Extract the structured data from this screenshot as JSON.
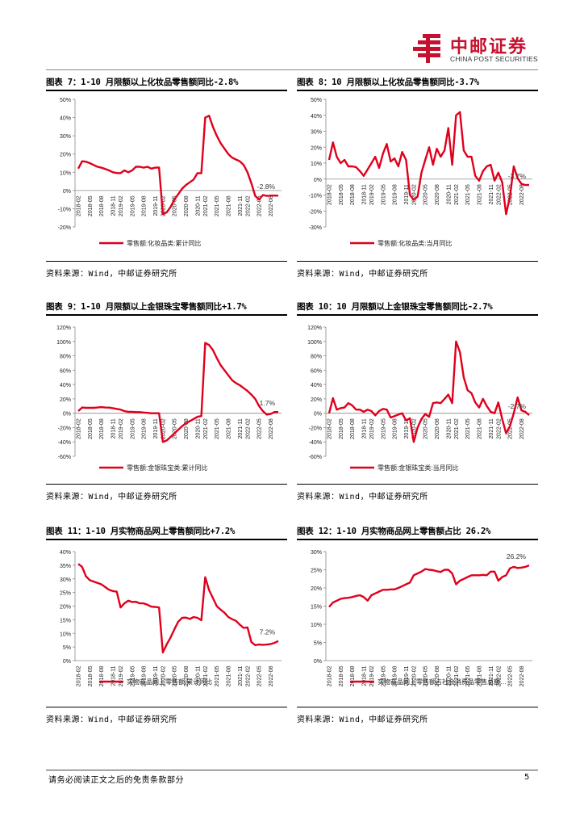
{
  "header": {
    "brand_cn": "中邮证券",
    "brand_en": "CHINA POST SECURITIES",
    "brand_color": "#c8102e"
  },
  "footer": {
    "disclaimer": "请务必阅读正文之后的免责条款部分",
    "page_number": "5"
  },
  "source_text": "资料来源：Wind，中邮证券研究所",
  "series_color": "#e0001b",
  "chart_data": [
    {
      "id": "c7",
      "type": "line",
      "title": "图表 7：1-10 月限额以上化妆品零售额同比-2.8%",
      "legend": "零售额:化妆品类:累计同比",
      "ylim": [
        -20,
        50
      ],
      "yticks": [
        50,
        40,
        30,
        20,
        10,
        0,
        -10,
        -20
      ],
      "yunit": "%",
      "xticks": [
        "2018-02",
        "2018-05",
        "2018-08",
        "2018-11",
        "2019-02",
        "2019-05",
        "2019-08",
        "2019-11",
        "2020-02",
        "2020-05",
        "2020-08",
        "2020-11",
        "2021-02",
        "2021-05",
        "2021-08",
        "2021-11",
        "2022-02",
        "2022-05",
        "2022-08"
      ],
      "x": [
        "2018-02",
        "2018-03",
        "2018-04",
        "2018-05",
        "2018-06",
        "2018-07",
        "2018-08",
        "2018-09",
        "2018-10",
        "2018-11",
        "2018-12",
        "2019-02",
        "2019-03",
        "2019-04",
        "2019-05",
        "2019-06",
        "2019-07",
        "2019-08",
        "2019-09",
        "2019-10",
        "2019-11",
        "2019-12",
        "2020-02",
        "2020-03",
        "2020-04",
        "2020-05",
        "2020-06",
        "2020-07",
        "2020-08",
        "2020-09",
        "2020-10",
        "2020-11",
        "2020-12",
        "2021-02",
        "2021-03",
        "2021-04",
        "2021-05",
        "2021-06",
        "2021-07",
        "2021-08",
        "2021-09",
        "2021-10",
        "2021-11",
        "2021-12",
        "2022-02",
        "2022-03",
        "2022-04",
        "2022-05",
        "2022-06",
        "2022-07",
        "2022-08",
        "2022-09",
        "2022-10"
      ],
      "values": [
        12,
        16,
        15.8,
        15,
        14,
        13,
        12.5,
        11.8,
        11,
        10,
        9.6,
        9.5,
        11,
        10,
        11,
        13,
        13,
        12.5,
        13,
        12,
        12.5,
        12.6,
        -13,
        -12,
        -9,
        -5,
        -2,
        1,
        3,
        4.5,
        6,
        9.5,
        9.5,
        40,
        41,
        35,
        30,
        26,
        23,
        20,
        18,
        17,
        16,
        14,
        10,
        4,
        -3,
        -5,
        -2.5,
        -3,
        -2.8,
        -2.8,
        -2.8
      ],
      "label": "-2.8%"
    },
    {
      "id": "c8",
      "type": "line",
      "title": "图表 8：10 月限额以上化妆品零售额同比-3.7%",
      "legend": "零售额:化妆品类:当月同比",
      "ylim": [
        -30,
        50
      ],
      "yticks": [
        50,
        40,
        30,
        20,
        10,
        0,
        -10,
        -20,
        -30
      ],
      "yunit": "%",
      "xticks": [
        "2018-02",
        "2018-05",
        "2018-08",
        "2018-11",
        "2019-02",
        "2019-05",
        "2019-08",
        "2019-11",
        "2020-02",
        "2020-05",
        "2020-08",
        "2020-11",
        "2021-02",
        "2021-05",
        "2021-08",
        "2021-11",
        "2022-02",
        "2022-05",
        "2022-08"
      ],
      "x": [
        "2018-02",
        "2018-03",
        "2018-04",
        "2018-05",
        "2018-06",
        "2018-07",
        "2018-08",
        "2018-09",
        "2018-10",
        "2018-11",
        "2018-12",
        "2019-02",
        "2019-03",
        "2019-04",
        "2019-05",
        "2019-06",
        "2019-07",
        "2019-08",
        "2019-09",
        "2019-10",
        "2019-11",
        "2019-12",
        "2020-02",
        "2020-03",
        "2020-04",
        "2020-05",
        "2020-06",
        "2020-07",
        "2020-08",
        "2020-09",
        "2020-10",
        "2020-11",
        "2020-12",
        "2021-02",
        "2021-03",
        "2021-04",
        "2021-05",
        "2021-06",
        "2021-07",
        "2021-08",
        "2021-09",
        "2021-10",
        "2021-11",
        "2021-12",
        "2022-02",
        "2022-03",
        "2022-04",
        "2022-05",
        "2022-06",
        "2022-07",
        "2022-08",
        "2022-09",
        "2022-10"
      ],
      "values": [
        12,
        23,
        14,
        10,
        12,
        8,
        8,
        7.5,
        5,
        2,
        6,
        10,
        14,
        7,
        16,
        22,
        11,
        13,
        8,
        17,
        12,
        -10,
        -13,
        -11,
        4,
        12,
        20,
        9,
        19,
        14,
        18,
        32,
        9,
        40,
        42,
        18,
        14,
        14,
        2,
        -1,
        5,
        8,
        9,
        -1,
        4,
        -2,
        -22,
        -11,
        8,
        0.5,
        -3,
        -3.7,
        -3.7
      ],
      "label": "-3.7%"
    },
    {
      "id": "c9",
      "type": "line",
      "title": "图表 9：1-10 月限额以上金银珠宝零售额同比+1.7%",
      "legend": "零售额:金银珠宝类:累计同比",
      "ylim": [
        -60,
        120
      ],
      "yticks": [
        120,
        100,
        80,
        60,
        40,
        20,
        0,
        -20,
        -40,
        -60
      ],
      "yunit": "%",
      "xticks": [
        "2018-02",
        "2018-05",
        "2018-08",
        "2018-11",
        "2019-02",
        "2019-05",
        "2019-08",
        "2019-11",
        "2020-02",
        "2020-05",
        "2020-08",
        "2020-11",
        "2021-02",
        "2021-05",
        "2021-08",
        "2021-11",
        "2022-02",
        "2022-05",
        "2022-08"
      ],
      "x": [
        "2018-02",
        "2018-03",
        "2018-04",
        "2018-05",
        "2018-06",
        "2018-07",
        "2018-08",
        "2018-09",
        "2018-10",
        "2018-11",
        "2018-12",
        "2019-02",
        "2019-03",
        "2019-04",
        "2019-05",
        "2019-06",
        "2019-07",
        "2019-08",
        "2019-09",
        "2019-10",
        "2019-11",
        "2019-12",
        "2020-02",
        "2020-03",
        "2020-04",
        "2020-05",
        "2020-06",
        "2020-07",
        "2020-08",
        "2020-09",
        "2020-10",
        "2020-11",
        "2020-12",
        "2021-02",
        "2021-03",
        "2021-04",
        "2021-05",
        "2021-06",
        "2021-07",
        "2021-08",
        "2021-09",
        "2021-10",
        "2021-11",
        "2021-12",
        "2022-02",
        "2022-03",
        "2022-04",
        "2022-05",
        "2022-06",
        "2022-07",
        "2022-08",
        "2022-09",
        "2022-10"
      ],
      "values": [
        3,
        8,
        7.5,
        7.5,
        7.5,
        8,
        8.5,
        8,
        7.8,
        7,
        6,
        5,
        3,
        2,
        2,
        1.5,
        1.5,
        1,
        0.5,
        0,
        0,
        0,
        -40,
        -38,
        -33,
        -28,
        -23,
        -18,
        -14,
        -11,
        -8,
        -5,
        -4,
        98,
        95,
        88,
        77,
        67,
        60,
        53,
        46,
        42,
        39,
        35,
        31,
        26,
        20,
        10,
        3,
        -2,
        -1,
        1.7,
        1.7
      ],
      "label": "1.7%"
    },
    {
      "id": "c10",
      "type": "line",
      "title": "图表 10：10 月限额以上金银珠宝零售额同比-2.7%",
      "legend": "零售额:金银珠宝类:当月同比",
      "ylim": [
        -60,
        120
      ],
      "yticks": [
        120,
        100,
        80,
        60,
        40,
        20,
        0,
        -20,
        -40,
        -60
      ],
      "yunit": "%",
      "xticks": [
        "2018-02",
        "2018-05",
        "2018-08",
        "2018-11",
        "2019-02",
        "2019-05",
        "2019-08",
        "2019-11",
        "2020-02",
        "2020-05",
        "2020-08",
        "2020-11",
        "2021-02",
        "2021-05",
        "2021-08",
        "2021-11",
        "2022-02",
        "2022-05",
        "2022-08"
      ],
      "x": [
        "2018-02",
        "2018-03",
        "2018-04",
        "2018-05",
        "2018-06",
        "2018-07",
        "2018-08",
        "2018-09",
        "2018-10",
        "2018-11",
        "2018-12",
        "2019-02",
        "2019-03",
        "2019-04",
        "2019-05",
        "2019-06",
        "2019-07",
        "2019-08",
        "2019-09",
        "2019-10",
        "2019-11",
        "2019-12",
        "2020-02",
        "2020-03",
        "2020-04",
        "2020-05",
        "2020-06",
        "2020-07",
        "2020-08",
        "2020-09",
        "2020-10",
        "2020-11",
        "2020-12",
        "2021-02",
        "2021-03",
        "2021-04",
        "2021-05",
        "2021-06",
        "2021-07",
        "2021-08",
        "2021-09",
        "2021-10",
        "2021-11",
        "2021-12",
        "2022-02",
        "2022-03",
        "2022-04",
        "2022-05",
        "2022-06",
        "2022-07",
        "2022-08",
        "2022-09",
        "2022-10"
      ],
      "values": [
        0,
        21,
        5,
        7,
        8,
        14,
        11,
        5,
        5,
        2,
        5,
        3,
        -3,
        3,
        6,
        5,
        -6,
        -4,
        -2,
        0,
        -10,
        -7,
        -40,
        -20,
        -8,
        -1,
        -5,
        14,
        15,
        14,
        20,
        26,
        14,
        100,
        85,
        50,
        32,
        28,
        15,
        8,
        20,
        10,
        2,
        0,
        15,
        -8,
        -28,
        -18,
        0,
        22,
        4,
        2,
        -2.7
      ],
      "label": "-2.7%"
    },
    {
      "id": "c11",
      "type": "line",
      "title": "图表 11：1-10 月实物商品网上零售额同比+7.2%",
      "legend": "实物商品网上零售额:累计同比",
      "ylim": [
        0,
        40
      ],
      "yticks": [
        40,
        35,
        30,
        25,
        20,
        15,
        10,
        5,
        0
      ],
      "yunit": "%",
      "xticks": [
        "2018-02",
        "2018-05",
        "2018-08",
        "2018-11",
        "2019-02",
        "2019-05",
        "2019-08",
        "2019-11",
        "2020-02",
        "2020-05",
        "2020-08",
        "2020-11",
        "2021-02",
        "2021-05",
        "2021-08",
        "2021-11",
        "2022-02",
        "2022-05",
        "2022-08"
      ],
      "x": [
        "2018-02",
        "2018-03",
        "2018-04",
        "2018-05",
        "2018-06",
        "2018-07",
        "2018-08",
        "2018-09",
        "2018-10",
        "2018-11",
        "2018-12",
        "2019-02",
        "2019-03",
        "2019-04",
        "2019-05",
        "2019-06",
        "2019-07",
        "2019-08",
        "2019-09",
        "2019-10",
        "2019-11",
        "2019-12",
        "2020-02",
        "2020-03",
        "2020-04",
        "2020-05",
        "2020-06",
        "2020-07",
        "2020-08",
        "2020-09",
        "2020-10",
        "2020-11",
        "2020-12",
        "2021-02",
        "2021-03",
        "2021-04",
        "2021-05",
        "2021-06",
        "2021-07",
        "2021-08",
        "2021-09",
        "2021-10",
        "2021-11",
        "2021-12",
        "2022-02",
        "2022-03",
        "2022-04",
        "2022-05",
        "2022-06",
        "2022-07",
        "2022-08",
        "2022-09",
        "2022-10"
      ],
      "values": [
        35.5,
        34.4,
        31,
        29.5,
        29,
        28.5,
        28,
        27,
        26,
        25.5,
        25.3,
        19.5,
        21,
        22,
        21.5,
        21.6,
        21,
        21,
        20.5,
        19.8,
        19.7,
        19.5,
        3,
        6,
        8.5,
        11.5,
        14.3,
        15.7,
        15.8,
        15.3,
        16,
        15.7,
        14.8,
        30.6,
        25.9,
        23,
        20,
        18.7,
        17.6,
        16,
        15.2,
        14.6,
        13.2,
        12,
        12.2,
        6.8,
        5.7,
        5.9,
        5.8,
        5.9,
        6.1,
        6.5,
        7.2
      ],
      "label": "7.2%"
    },
    {
      "id": "c12",
      "type": "line",
      "title": "图表 12：1-10 月实物商品网上零售额占比 26.2%",
      "legend": "实物商品网上零售额占社会消费品零售总额…",
      "ylim": [
        0,
        30
      ],
      "yticks": [
        30,
        25,
        20,
        15,
        10,
        5,
        0
      ],
      "yunit": "%",
      "xticks": [
        "2018-02",
        "2018-05",
        "2018-08",
        "2018-11",
        "2019-02",
        "2019-05",
        "2019-08",
        "2019-11",
        "2020-02",
        "2020-05",
        "2020-08",
        "2020-11",
        "2021-02",
        "2021-05",
        "2021-08",
        "2021-11",
        "2022-02",
        "2022-05",
        "2022-08"
      ],
      "x": [
        "2018-02",
        "2018-03",
        "2018-04",
        "2018-05",
        "2018-06",
        "2018-07",
        "2018-08",
        "2018-09",
        "2018-10",
        "2018-11",
        "2018-12",
        "2019-02",
        "2019-03",
        "2019-04",
        "2019-05",
        "2019-06",
        "2019-07",
        "2019-08",
        "2019-09",
        "2019-10",
        "2019-11",
        "2019-12",
        "2020-02",
        "2020-03",
        "2020-04",
        "2020-05",
        "2020-06",
        "2020-07",
        "2020-08",
        "2020-09",
        "2020-10",
        "2020-11",
        "2020-12",
        "2021-02",
        "2021-03",
        "2021-04",
        "2021-05",
        "2021-06",
        "2021-07",
        "2021-08",
        "2021-09",
        "2021-10",
        "2021-11",
        "2021-12",
        "2022-02",
        "2022-03",
        "2022-04",
        "2022-05",
        "2022-06",
        "2022-07",
        "2022-08",
        "2022-09",
        "2022-10"
      ],
      "values": [
        14.8,
        16,
        16.5,
        17,
        17.2,
        17.3,
        17.5,
        17.8,
        18,
        17.5,
        16.5,
        18,
        18.5,
        19,
        19.5,
        19.5,
        19.6,
        19.6,
        20,
        20.5,
        21,
        21.5,
        23.5,
        24,
        24.5,
        25.2,
        25,
        24.9,
        24.6,
        24.4,
        25,
        25,
        24,
        21,
        22,
        22.5,
        23,
        23.5,
        23.5,
        23.5,
        23.6,
        23.5,
        24.5,
        24.5,
        22,
        23,
        23.5,
        25.4,
        25.8,
        25.5,
        25.6,
        25.8,
        26.2
      ],
      "label": "26.2%"
    }
  ]
}
